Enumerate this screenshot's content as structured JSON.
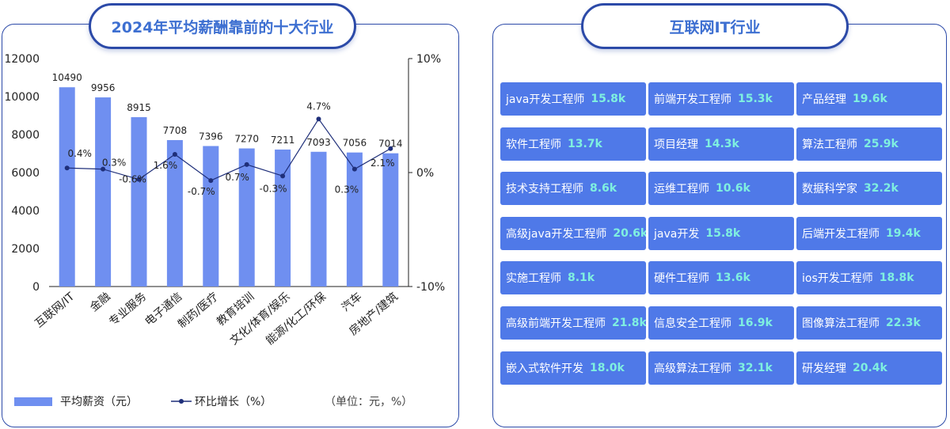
{
  "left_panel": {
    "title": "2024年平均薪酬靠前的十大行业"
  },
  "right_panel": {
    "title": "互联网IT行业",
    "jobs": [
      {
        "name": "java开发工程师",
        "salary": "15.8k"
      },
      {
        "name": "前端开发工程师",
        "salary": "15.3k"
      },
      {
        "name": "产品经理",
        "salary": "19.6k"
      },
      {
        "name": "软件工程师",
        "salary": "13.7k"
      },
      {
        "name": "项目经理",
        "salary": "14.3k"
      },
      {
        "name": "算法工程师",
        "salary": "25.9k"
      },
      {
        "name": "技术支持工程师",
        "salary": "8.6k"
      },
      {
        "name": "运维工程师",
        "salary": "10.6k"
      },
      {
        "name": "数据科学家",
        "salary": "32.2k"
      },
      {
        "name": "高级java开发工程师",
        "salary": "20.6k"
      },
      {
        "name": "java开发",
        "salary": "15.8k"
      },
      {
        "name": "后端开发工程师",
        "salary": "19.4k"
      },
      {
        "name": "实施工程师",
        "salary": "8.1k"
      },
      {
        "name": "硬件工程师",
        "salary": "13.6k"
      },
      {
        "name": "ios开发工程师",
        "salary": "18.8k"
      },
      {
        "name": "高级前端开发工程师",
        "salary": "21.8k"
      },
      {
        "name": "信息安全工程师",
        "salary": "16.9k"
      },
      {
        "name": "图像算法工程师",
        "salary": "22.3k"
      },
      {
        "name": "嵌入式软件开发",
        "salary": "18.0k"
      },
      {
        "name": "高级算法工程师",
        "salary": "32.1k"
      },
      {
        "name": "研发经理",
        "salary": "20.4k"
      }
    ]
  },
  "chart_data": {
    "type": "bar",
    "title": "2024年平均薪酬靠前的十大行业",
    "categories": [
      "互联网/IT",
      "金融",
      "专业服务",
      "电子通信",
      "制药/医疗",
      "教育培训",
      "文化/体育/娱乐",
      "能源/化工/环保",
      "汽车",
      "房地产/建筑"
    ],
    "series": [
      {
        "name": "平均薪资（元）",
        "type": "bar",
        "axis": "left",
        "values": [
          10490,
          9956,
          8915,
          7708,
          7396,
          7270,
          7211,
          7093,
          7056,
          7014
        ],
        "labels": [
          "10490",
          "9956",
          "8915",
          "7708",
          "7396",
          "7270",
          "7211",
          "7093",
          "7056",
          "7014"
        ]
      },
      {
        "name": "环比增长（%）",
        "type": "line",
        "axis": "right",
        "values": [
          0.4,
          0.3,
          -0.6,
          1.6,
          -0.7,
          0.7,
          -0.3,
          4.7,
          0.3,
          2.1
        ],
        "labels": [
          "0.4%",
          "0.3%",
          "-0.6%",
          "1.6%",
          "-0.7%",
          "0.7%",
          "-0.3%",
          "4.7%",
          "0.3%",
          "2.1%"
        ]
      }
    ],
    "y_left": {
      "min": 0,
      "max": 12000,
      "ticks": [
        "0",
        "2000",
        "4000",
        "6000",
        "8000",
        "10000",
        "12000"
      ]
    },
    "y_right": {
      "min": -10,
      "max": 10,
      "ticks": [
        "-10%",
        "0%",
        "10%"
      ]
    },
    "unit_note": "（单位：元，%）",
    "colors": {
      "bar": "#6f8ff0",
      "line": "#1f2f7a"
    }
  }
}
